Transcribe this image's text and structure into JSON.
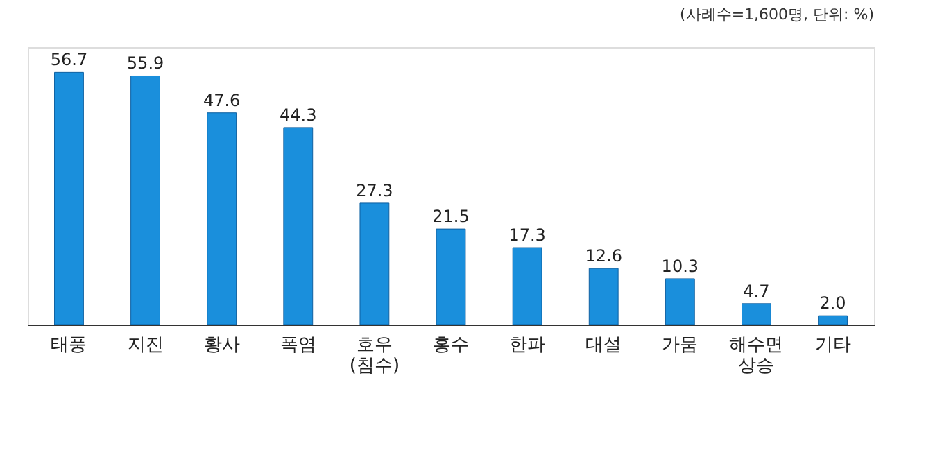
{
  "chart_data": {
    "type": "bar",
    "categories": [
      "태풍",
      "지진",
      "황사",
      "폭염",
      "호우\n(침수)",
      "홍수",
      "한파",
      "대설",
      "가뭄",
      "해수면\n상승",
      "기타"
    ],
    "values": [
      56.7,
      55.9,
      47.6,
      44.3,
      27.3,
      21.5,
      17.3,
      12.6,
      10.3,
      4.7,
      2.0
    ],
    "color": "#1a8fdc",
    "value_labels": [
      "56.7",
      "55.9",
      "47.6",
      "44.3",
      "27.3",
      "21.5",
      "17.3",
      "12.6",
      "10.3",
      "4.7",
      "2.0"
    ],
    "annotations": [
      "(사례수=1,600명, 단위: %)"
    ]
  }
}
